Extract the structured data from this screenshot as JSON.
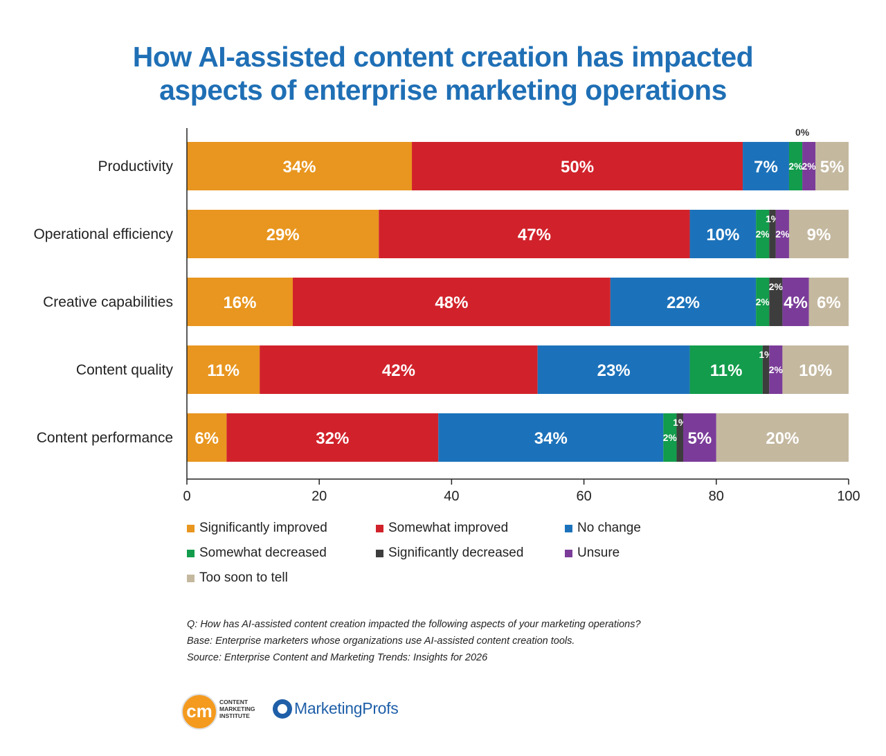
{
  "title": {
    "line1": "How AI-assisted content creation has impacted",
    "line2": "aspects of enterprise marketing operations"
  },
  "chart_data": {
    "type": "bar",
    "orientation": "horizontal",
    "stacked": true,
    "categories": [
      "Productivity",
      "Operational efficiency",
      "Creative capabilities",
      "Content quality",
      "Content performance"
    ],
    "series": [
      {
        "name": "Significantly improved",
        "color": "#e8961f",
        "values": [
          34,
          29,
          16,
          11,
          6
        ]
      },
      {
        "name": "Somewhat improved",
        "color": "#d1222b",
        "values": [
          50,
          47,
          48,
          42,
          32
        ]
      },
      {
        "name": "No change",
        "color": "#1c72ba",
        "values": [
          7,
          10,
          22,
          23,
          34
        ]
      },
      {
        "name": "Somewhat decreased",
        "color": "#129c4b",
        "values": [
          2,
          2,
          2,
          11,
          2
        ]
      },
      {
        "name": "Significantly decreased",
        "color": "#3d3d3d",
        "values": [
          0,
          1,
          2,
          1,
          1
        ]
      },
      {
        "name": "Unsure",
        "color": "#7b3c99",
        "values": [
          2,
          2,
          4,
          2,
          5
        ]
      },
      {
        "name": "Too soon to tell",
        "color": "#c4b89f",
        "values": [
          5,
          9,
          6,
          10,
          20
        ]
      }
    ],
    "xlim": [
      0,
      100
    ],
    "xticks": [
      0,
      20,
      40,
      60,
      80,
      100
    ],
    "grid": false,
    "legend_position": "bottom"
  },
  "notes": {
    "question": "Q: How has AI-assisted content creation impacted the following aspects of your marketing operations?",
    "base": "Base: Enterprise marketers whose organizations use AI-assisted content creation tools.",
    "source": "Source: Enterprise Content and Marketing Trends: Insights for 2026"
  },
  "logos": {
    "cmi_mark": "cm",
    "cmi_line1": "CONTENT",
    "cmi_line2": "MARKETING",
    "cmi_line3": "INSTITUTE",
    "mp_name": "MarketingProfs"
  }
}
